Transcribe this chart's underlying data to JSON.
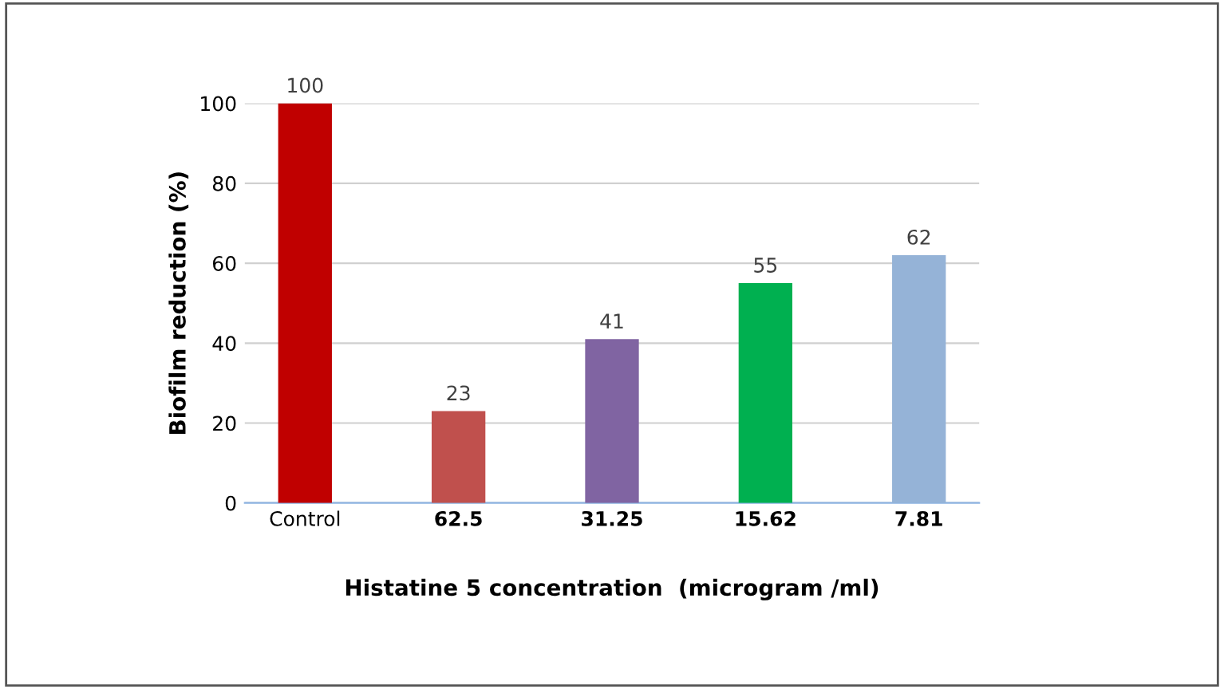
{
  "chart_data": {
    "type": "bar",
    "xlabel": "Histatine 5 concentration  (microgram /ml)",
    "ylabel": "Biofilm reduction (%)",
    "categories": [
      "Control",
      "62.5",
      "31.25",
      "15.62",
      "7.81"
    ],
    "values": [
      100,
      23,
      41,
      55,
      62
    ],
    "colors": [
      "#c00000",
      "#c0504d",
      "#8064a2",
      "#00b050",
      "#95b3d7"
    ],
    "ylim": [
      0,
      100
    ],
    "yticks": [
      0,
      20,
      40,
      60,
      80,
      100
    ],
    "grid": "y",
    "data_labels": true
  }
}
